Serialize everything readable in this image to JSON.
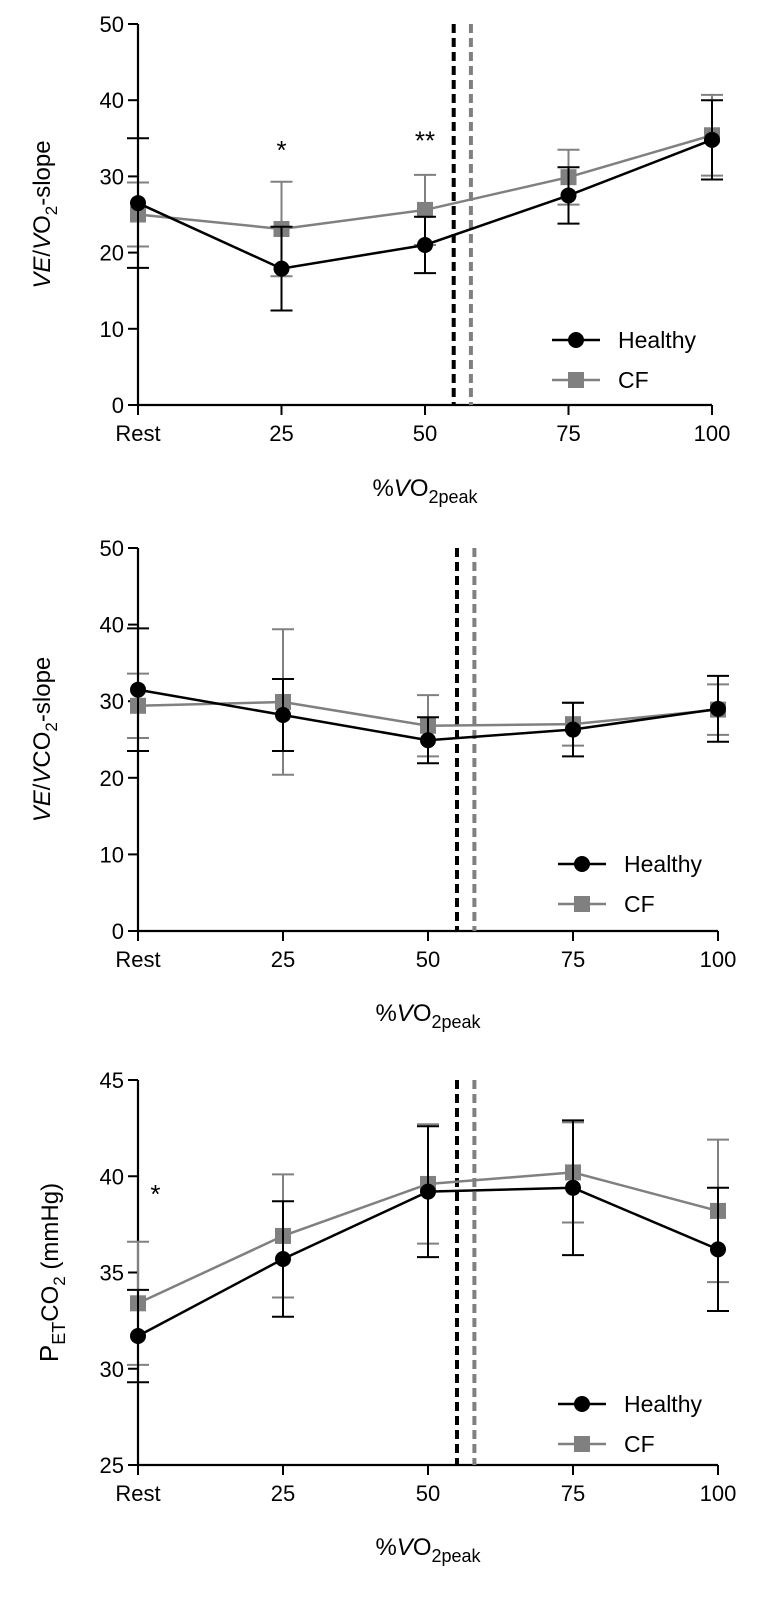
{
  "colors": {
    "healthy": "#000000",
    "cf": "#808080"
  },
  "chart_data": [
    {
      "type": "line",
      "categories": [
        "Rest",
        "25",
        "50",
        "75",
        "100"
      ],
      "x": [
        0,
        25,
        50,
        75,
        100
      ],
      "ylim": [
        0,
        50
      ],
      "yticks": [
        "0",
        "10",
        "20",
        "30",
        "40",
        "50"
      ],
      "ylabel": {
        "v1": "V",
        "sub1": "E",
        "sep": "/",
        "v2": "V",
        "rest": "O",
        "sub2": "2",
        "tail": "-slope"
      },
      "xlabel": {
        "pre": "%",
        "v": "V",
        "rest": "O",
        "sub": "2peak"
      },
      "series": [
        {
          "name": "Healthy",
          "values": [
            26.5,
            17.9,
            21.0,
            27.5,
            34.8
          ],
          "err": [
            8.5,
            5.5,
            3.7,
            3.7,
            5.2
          ]
        },
        {
          "name": "CF",
          "values": [
            25.0,
            23.1,
            25.6,
            29.9,
            35.4
          ],
          "err": [
            4.2,
            6.2,
            4.6,
            3.6,
            5.3
          ]
        }
      ],
      "thresholds": [
        {
          "x": 55,
          "color": "healthy"
        },
        {
          "x": 58,
          "color": "cf"
        }
      ],
      "annotations": [
        {
          "text": "*",
          "x": 25,
          "y": 32.3
        },
        {
          "text": "**",
          "x": 50,
          "y": 33.5
        }
      ],
      "legend": "bottom-right"
    },
    {
      "type": "line",
      "categories": [
        "Rest",
        "25",
        "50",
        "75",
        "100"
      ],
      "x": [
        0,
        25,
        50,
        75,
        100
      ],
      "ylim": [
        0,
        50
      ],
      "yticks": [
        "0",
        "10",
        "20",
        "30",
        "40",
        "50"
      ],
      "ylabel": {
        "v1": "V",
        "sub1": "E",
        "sep": "/",
        "v2": "V",
        "rest": "CO",
        "sub2": "2",
        "tail": "-slope"
      },
      "xlabel": {
        "pre": "%",
        "v": "V",
        "rest": "O",
        "sub": "2peak"
      },
      "series": [
        {
          "name": "Healthy",
          "values": [
            31.5,
            28.2,
            24.9,
            26.3,
            29.0
          ],
          "err": [
            8.0,
            4.7,
            3.0,
            3.5,
            4.3
          ]
        },
        {
          "name": "CF",
          "values": [
            29.4,
            29.9,
            26.8,
            27.0,
            28.9
          ],
          "err": [
            4.2,
            9.5,
            4.0,
            2.8,
            3.3
          ]
        }
      ],
      "thresholds": [
        {
          "x": 55,
          "color": "healthy"
        },
        {
          "x": 58,
          "color": "cf"
        }
      ],
      "annotations": [],
      "legend": "bottom-right"
    },
    {
      "type": "line",
      "categories": [
        "Rest",
        "25",
        "50",
        "75",
        "100"
      ],
      "x": [
        0,
        25,
        50,
        75,
        100
      ],
      "ylim": [
        25,
        45
      ],
      "yticks": [
        "25",
        "30",
        "35",
        "40",
        "45"
      ],
      "ylabel": {
        "p": "P",
        "psub": "ET",
        "rest": "CO",
        "sub2": "2",
        "tail": " (mmHg)"
      },
      "xlabel": {
        "pre": "%",
        "v": "V",
        "rest": "O",
        "sub": "2peak"
      },
      "series": [
        {
          "name": "Healthy",
          "values": [
            31.7,
            35.7,
            39.2,
            39.4,
            36.2
          ],
          "err": [
            2.4,
            3.0,
            3.4,
            3.5,
            3.2
          ]
        },
        {
          "name": "CF",
          "values": [
            33.4,
            36.9,
            39.6,
            40.2,
            38.2
          ],
          "err": [
            3.2,
            3.2,
            3.1,
            2.6,
            3.7
          ]
        }
      ],
      "thresholds": [
        {
          "x": 55,
          "color": "healthy"
        },
        {
          "x": 58,
          "color": "cf"
        }
      ],
      "annotations": [
        {
          "text": "*",
          "x": 3,
          "y": 38.6
        }
      ],
      "legend": "bottom-right"
    }
  ]
}
